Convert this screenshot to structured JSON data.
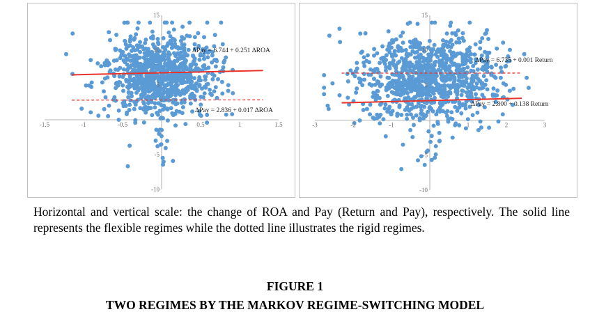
{
  "chart_data": [
    {
      "type": "scatter",
      "title": "",
      "xlabel": "",
      "ylabel": "",
      "xlim": [
        -1.5,
        1.5
      ],
      "ylim": [
        -10,
        15
      ],
      "x_ticks": [
        "-1.5",
        "-1",
        "-0.5",
        "0.5",
        "1",
        "1.5"
      ],
      "y_ticks": [
        "15",
        "10",
        "5",
        "-5",
        "-10"
      ],
      "grid": false,
      "point_color": "#5b9bd5",
      "cloud": {
        "x_center": 0.0,
        "x_spread": 0.35,
        "y_center": 6.5,
        "y_spread": 2.8,
        "n_points": 900
      },
      "series": [
        {
          "style": "solid",
          "color": "#e8332a",
          "intercept": 6.744,
          "slope": 0.251,
          "x_range": [
            -1.15,
            1.3
          ],
          "label": "ΔPay = 6.744 + 0.251 ΔROA"
        },
        {
          "style": "dotted",
          "color": "#e8332a",
          "intercept": 2.836,
          "slope": 0.017,
          "x_range": [
            -1.15,
            1.3
          ],
          "label": "ΔPay = 2.836 + 0.017 ΔROA"
        }
      ]
    },
    {
      "type": "scatter",
      "title": "",
      "xlabel": "",
      "ylabel": "",
      "xlim": [
        -3,
        3
      ],
      "ylim": [
        -10,
        15
      ],
      "x_ticks": [
        "-3",
        "-2",
        "-1",
        "1",
        "2",
        "3"
      ],
      "y_ticks": [
        "15",
        "10",
        "5",
        "-5",
        "-10"
      ],
      "grid": false,
      "point_color": "#5b9bd5",
      "cloud": {
        "x_center": 0.0,
        "x_spread": 0.9,
        "y_center": 6.0,
        "y_spread": 3.0,
        "n_points": 1000
      },
      "series": [
        {
          "style": "dotted",
          "color": "#e8332a",
          "intercept": 6.735,
          "slope": 0.001,
          "x_range": [
            -2.3,
            2.4
          ],
          "label": "ΔPay = 6.735 + 0.001 Return"
        },
        {
          "style": "solid",
          "color": "#e8332a",
          "intercept": 2.8,
          "slope": 0.138,
          "x_range": [
            -2.3,
            2.4
          ],
          "label": "ΔPay = 2.800 + 0.138 Return"
        }
      ]
    }
  ],
  "caption": "Horizontal and vertical scale: the change of ROA and Pay (Return and Pay), respectively. The solid line represents the flexible regimes while the dotted line illustrates the rigid regimes.",
  "figure_number": "FIGURE 1",
  "figure_title": "TWO REGIMES BY THE MARKOV REGIME-SWITCHING MODEL"
}
